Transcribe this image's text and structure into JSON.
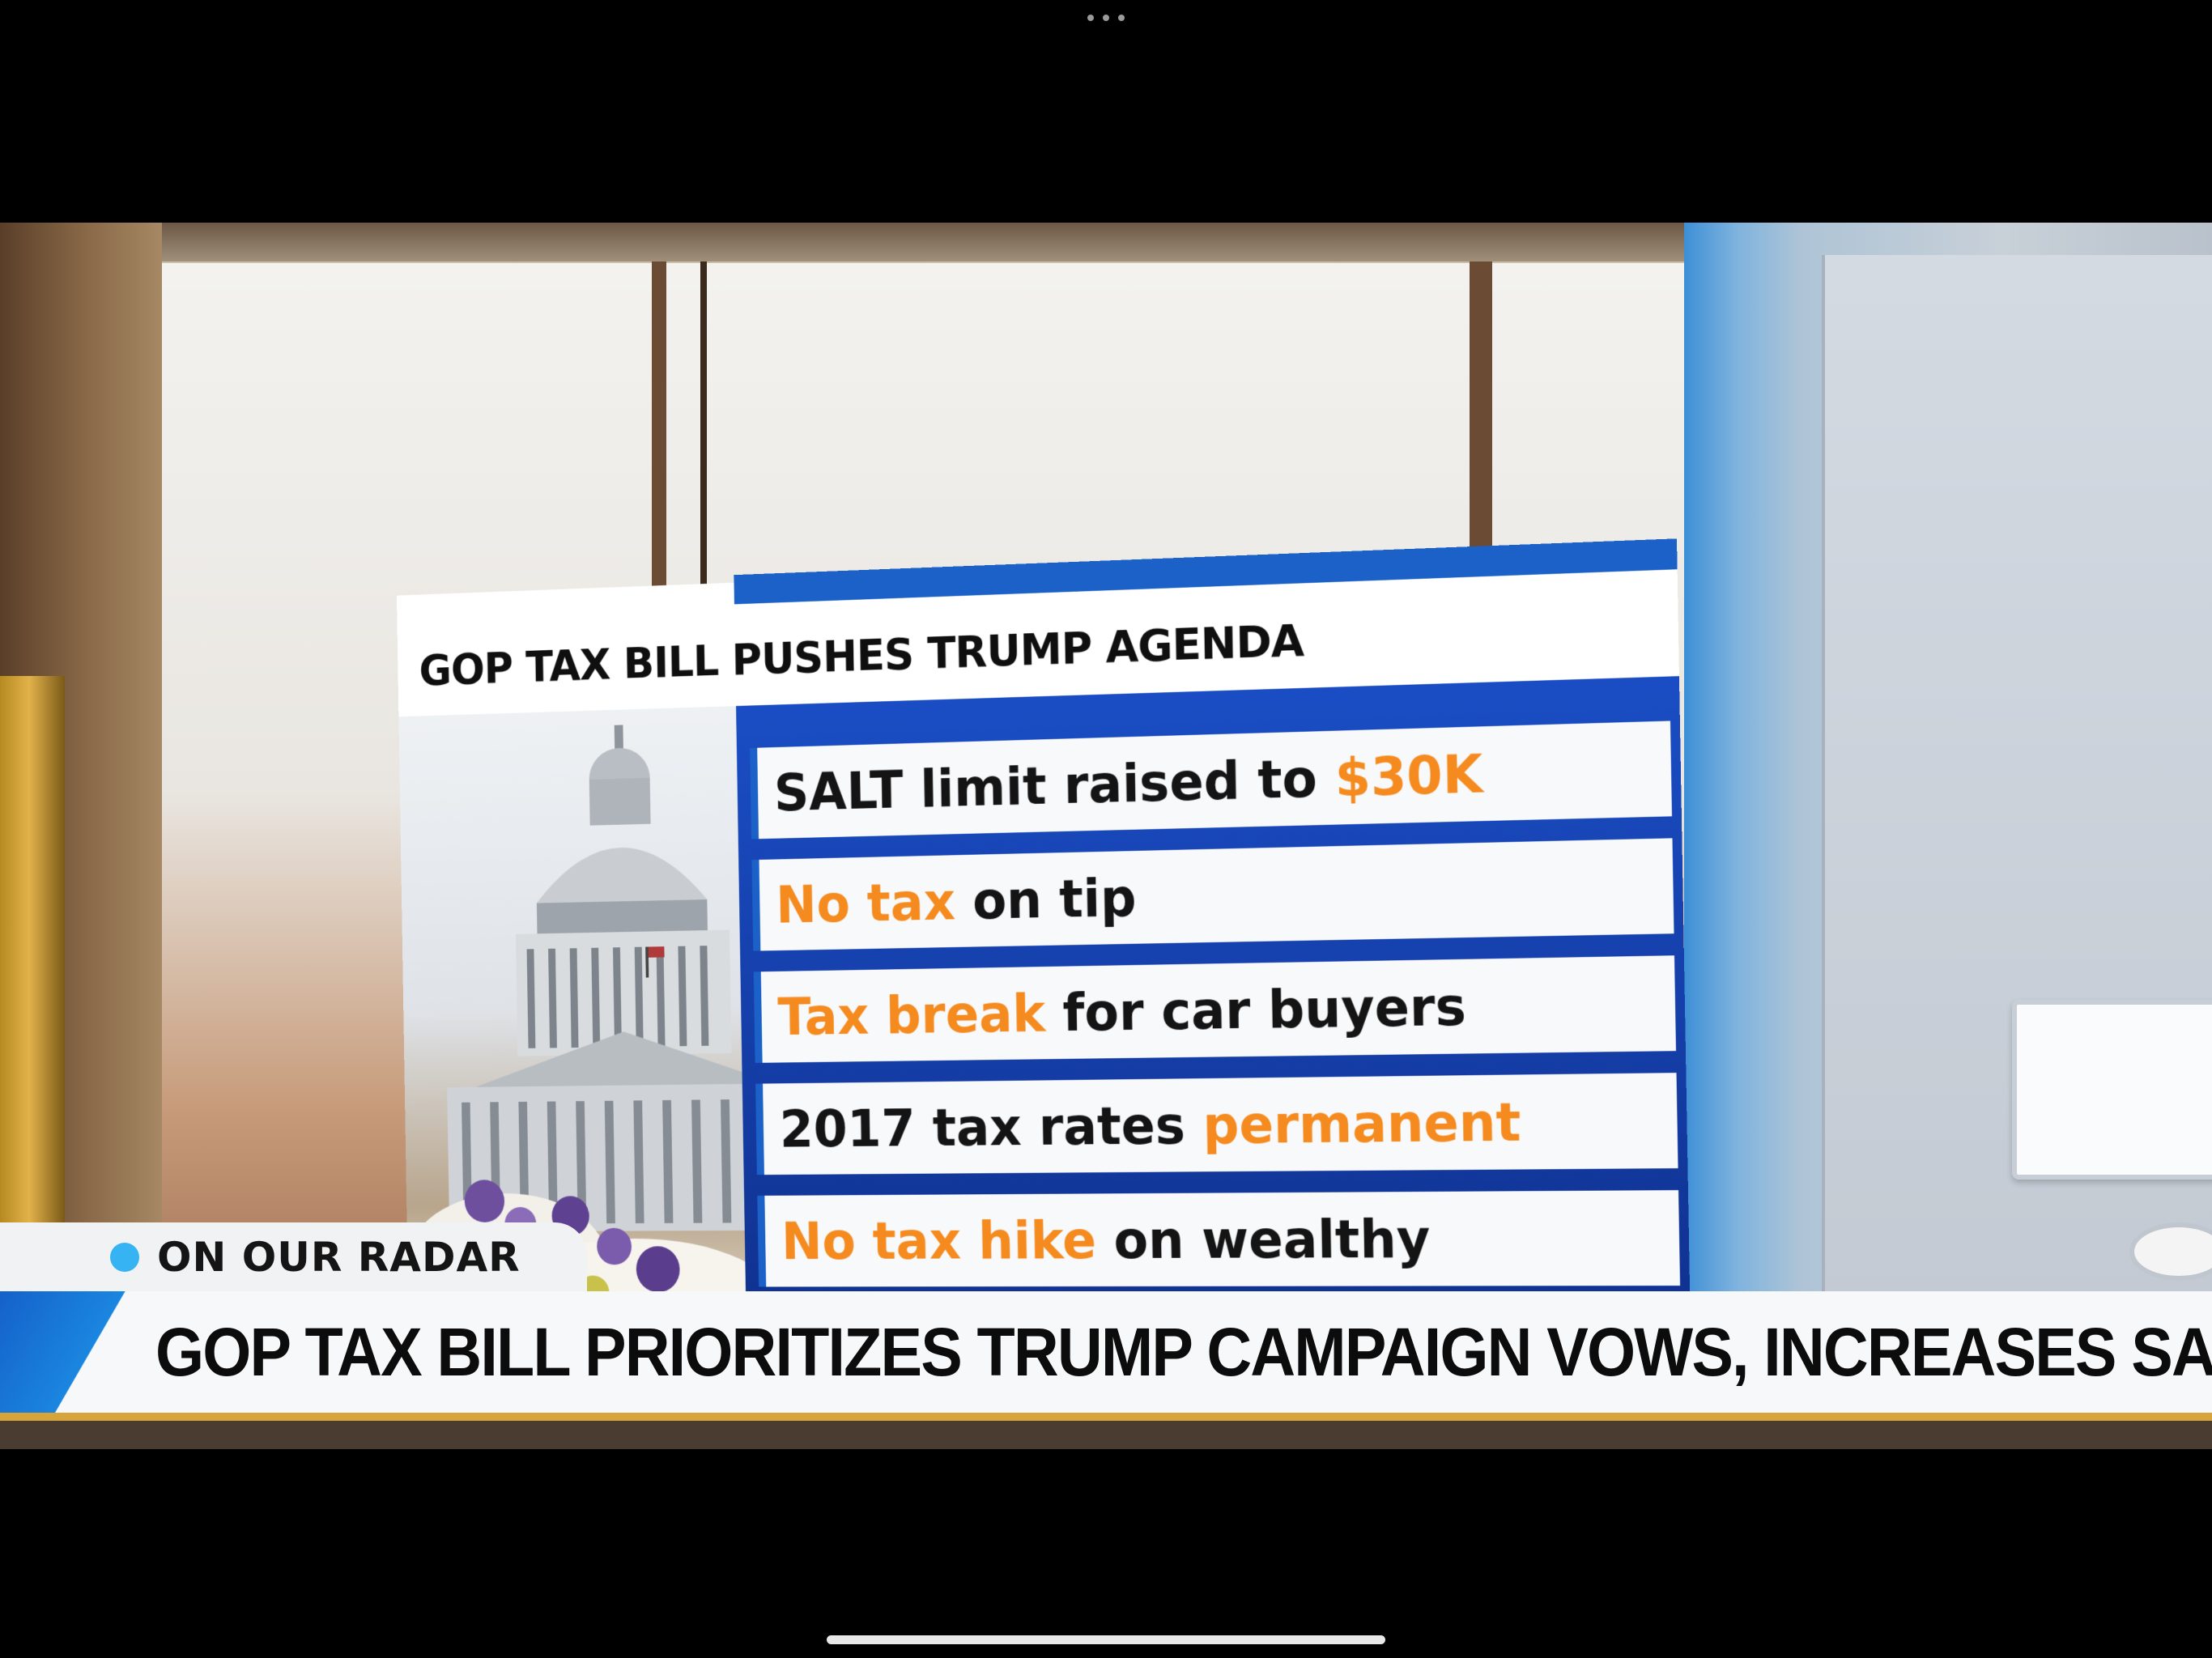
{
  "graphic": {
    "title": "GOP TAX BILL PUSHES TRUMP AGENDA",
    "items": [
      {
        "a": "SALT limit raised to ",
        "b": "$30K",
        "order": "ab"
      },
      {
        "a": "No tax",
        "b": " on tip",
        "order": "ab",
        "a_color": "orange"
      },
      {
        "a": "Tax break",
        "b": " for car buyers",
        "order": "ab",
        "a_color": "orange"
      },
      {
        "a": "2017 tax rates ",
        "b": "permanent",
        "order": "ab"
      },
      {
        "a": "No tax hike",
        "b": " on wealthy",
        "order": "ab",
        "a_color": "orange"
      }
    ]
  },
  "lower_third": {
    "tag": "ON OUR RADAR",
    "headline": "GOP TAX BILL PRIORITIZES TRUMP CAMPAIGN VOWS, INCREASES SALT"
  },
  "colors": {
    "accent_orange": "#f58a1e",
    "accent_blue": "#1b61c8",
    "tag_dot": "#35b3f3"
  },
  "icons": [
    "more-dots-icon",
    "home-indicator"
  ]
}
